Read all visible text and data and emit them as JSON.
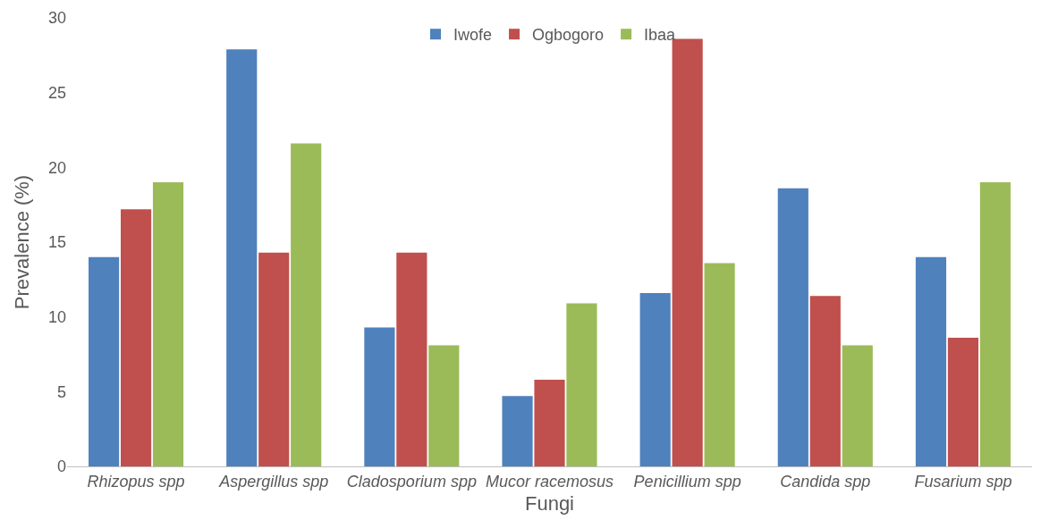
{
  "chart_data": {
    "type": "bar",
    "xlabel": "Fungi",
    "ylabel": "Prevalence (%)",
    "categories": [
      "Rhizopus spp",
      "Aspergillus spp",
      "Cladosporium spp",
      "Mucor racemosus",
      "Penicillium spp",
      "Candida spp",
      "Fusarium spp"
    ],
    "series": [
      {
        "name": "Iwofe",
        "color": "#4f81bd",
        "values": [
          14.0,
          27.9,
          9.3,
          4.7,
          11.6,
          18.6,
          14.0
        ]
      },
      {
        "name": "Ogbogoro",
        "color": "#c0504d",
        "values": [
          17.2,
          14.3,
          14.3,
          5.8,
          28.6,
          11.4,
          8.6
        ]
      },
      {
        "name": "Ibaa",
        "color": "#9bbb59",
        "values": [
          19.0,
          21.6,
          8.1,
          10.9,
          13.6,
          8.1,
          19.0
        ]
      }
    ],
    "ylim": [
      0,
      30
    ],
    "yticks": [
      0,
      5,
      10,
      15,
      20,
      25,
      30
    ],
    "grid": false,
    "legend": "top"
  }
}
